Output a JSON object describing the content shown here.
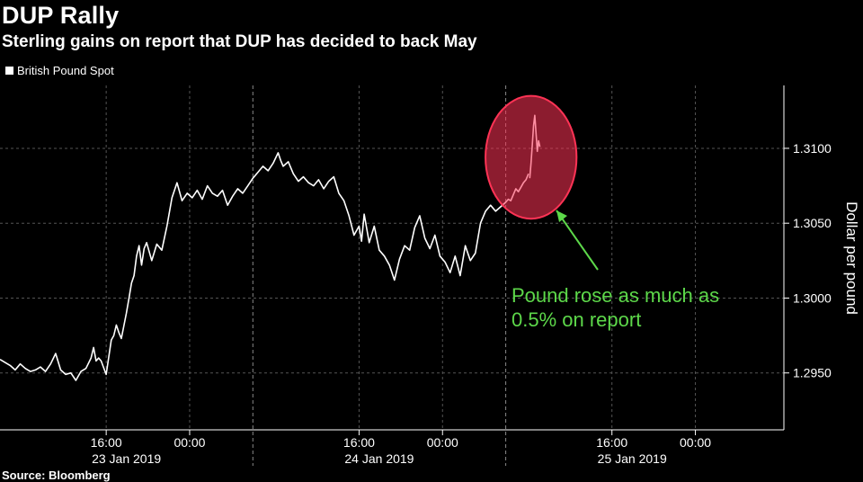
{
  "title": "DUP Rally",
  "subtitle": "Sterling gains on report that DUP has decided to back May",
  "legend": {
    "label": "British Pound Spot"
  },
  "source": "Source: Bloomberg",
  "annotation": {
    "line1": "Pound rose as much as",
    "line2": "0.5% on report"
  },
  "colors": {
    "background": "#000000",
    "line": "#ffffff",
    "grid": "#555555",
    "highlight": "#ff3355",
    "annotation": "#5dd84a"
  },
  "chart_data": {
    "type": "line",
    "title": "DUP Rally",
    "subtitle": "Sterling gains on report that DUP has decided to back May",
    "ylabel": "Dollar per pound",
    "ylim": [
      1.2912,
      1.3142
    ],
    "xlim": [
      0,
      3.1
    ],
    "yticks": [
      1.295,
      1.3,
      1.305,
      1.31
    ],
    "ytick_labels": [
      "1.2950",
      "1.3000",
      "1.3050",
      "1.3100"
    ],
    "xticks": [
      0.42,
      0.75,
      1.42,
      1.75,
      2.42,
      2.75
    ],
    "xtick_labels": [
      "16:00",
      "00:00",
      "16:00",
      "00:00",
      "16:00",
      "00:00"
    ],
    "day_labels": [
      {
        "x": 0.5,
        "label": "23 Jan 2019"
      },
      {
        "x": 1.5,
        "label": "24 Jan 2019"
      },
      {
        "x": 2.5,
        "label": "25 Jan 2019"
      }
    ],
    "day_separators": [
      1.0,
      2.0
    ],
    "grid": true,
    "legend_position": "top-left",
    "series": [
      {
        "name": "British Pound Spot",
        "x": [
          0.0,
          0.02,
          0.04,
          0.06,
          0.08,
          0.1,
          0.12,
          0.14,
          0.16,
          0.18,
          0.2,
          0.22,
          0.24,
          0.26,
          0.28,
          0.3,
          0.32,
          0.34,
          0.36,
          0.37,
          0.38,
          0.39,
          0.4,
          0.42,
          0.44,
          0.45,
          0.46,
          0.47,
          0.48,
          0.5,
          0.51,
          0.52,
          0.53,
          0.54,
          0.55,
          0.56,
          0.57,
          0.58,
          0.6,
          0.62,
          0.64,
          0.66,
          0.68,
          0.7,
          0.72,
          0.74,
          0.76,
          0.78,
          0.8,
          0.82,
          0.84,
          0.86,
          0.88,
          0.9,
          0.92,
          0.94,
          0.96,
          0.98,
          1.0,
          1.02,
          1.04,
          1.06,
          1.08,
          1.1,
          1.11,
          1.12,
          1.14,
          1.16,
          1.18,
          1.2,
          1.22,
          1.24,
          1.26,
          1.28,
          1.3,
          1.32,
          1.34,
          1.36,
          1.38,
          1.4,
          1.42,
          1.43,
          1.44,
          1.46,
          1.48,
          1.5,
          1.52,
          1.54,
          1.56,
          1.58,
          1.6,
          1.62,
          1.64,
          1.66,
          1.68,
          1.7,
          1.72,
          1.74,
          1.76,
          1.78,
          1.8,
          1.82,
          1.84,
          1.86,
          1.88,
          1.9,
          1.92,
          1.94,
          1.96,
          1.98,
          2.0,
          2.01,
          2.02,
          2.03,
          2.04,
          2.05,
          2.06,
          2.07,
          2.08,
          2.09
        ],
        "values": [
          1.2959,
          1.2957,
          1.2955,
          1.2952,
          1.2956,
          1.2953,
          1.2951,
          1.2952,
          1.2954,
          1.2951,
          1.2956,
          1.2963,
          1.2952,
          1.2949,
          1.295,
          1.2945,
          1.2951,
          1.2953,
          1.296,
          1.2967,
          1.2958,
          1.296,
          1.2958,
          1.2949,
          1.2972,
          1.2975,
          1.2982,
          1.2977,
          1.2973,
          1.299,
          1.3,
          1.301,
          1.3015,
          1.3028,
          1.3035,
          1.3022,
          1.3033,
          1.3037,
          1.3025,
          1.3036,
          1.3032,
          1.3048,
          1.3067,
          1.3077,
          1.3065,
          1.307,
          1.3067,
          1.3072,
          1.3066,
          1.3075,
          1.307,
          1.3068,
          1.3072,
          1.3062,
          1.3068,
          1.3073,
          1.307,
          1.3075,
          1.308,
          1.3084,
          1.3088,
          1.3085,
          1.309,
          1.3097,
          1.3092,
          1.3088,
          1.3091,
          1.3083,
          1.3078,
          1.3081,
          1.3077,
          1.3075,
          1.3079,
          1.3073,
          1.3078,
          1.3081,
          1.307,
          1.3065,
          1.3055,
          1.3042,
          1.3048,
          1.3038,
          1.3056,
          1.3037,
          1.3048,
          1.3032,
          1.3028,
          1.3022,
          1.3012,
          1.3026,
          1.3035,
          1.3032,
          1.3047,
          1.3055,
          1.304,
          1.3033,
          1.3042,
          1.3028,
          1.3024,
          1.3017,
          1.3028,
          1.3015,
          1.3035,
          1.3025,
          1.303,
          1.305,
          1.3058,
          1.3062,
          1.3058,
          1.3061,
          1.3064,
          1.3066,
          1.3065,
          1.3069,
          1.3073,
          1.3071,
          1.3074,
          1.3077,
          1.3079,
          1.3083
        ]
      },
      {
        "name": "",
        "x": [
          2.095,
          2.1,
          2.105,
          2.11,
          2.115,
          2.12,
          2.125,
          2.13,
          2.135
        ],
        "values": [
          1.308,
          1.309,
          1.3102,
          1.3115,
          1.3122,
          1.311,
          1.3098,
          1.3105,
          1.3101
        ]
      }
    ],
    "highlight_ellipse": {
      "x_center": 2.1,
      "x_radius": 0.18,
      "y_center": 1.3094,
      "y_radius": 0.0041
    }
  }
}
